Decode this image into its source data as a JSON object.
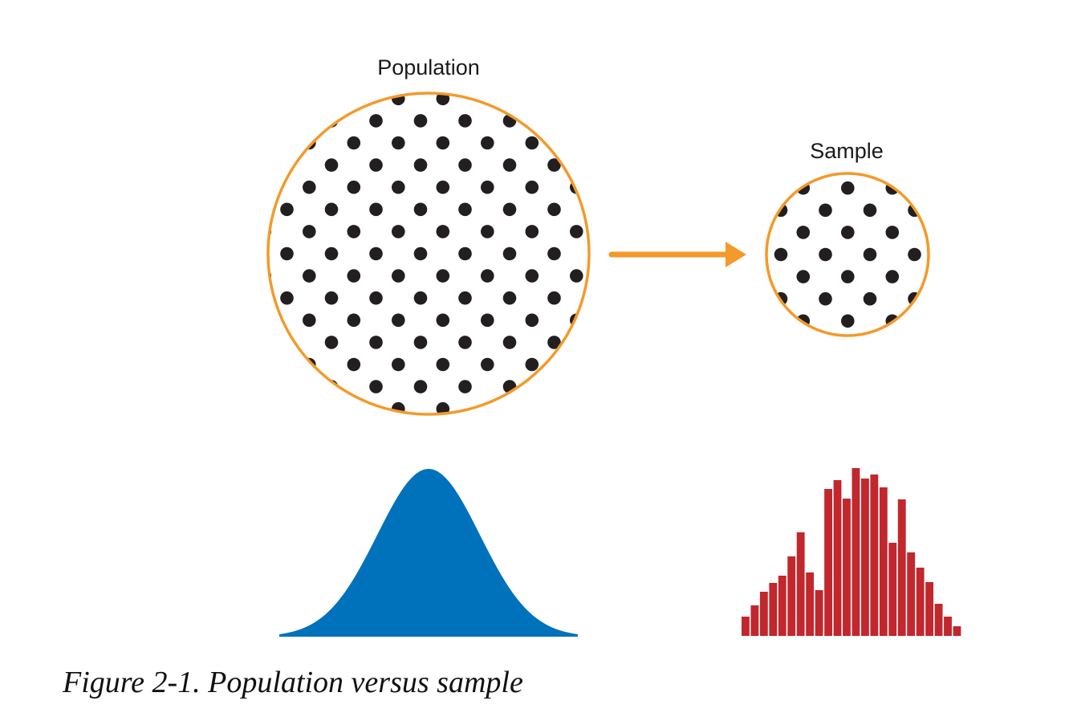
{
  "figure": {
    "population_label": "Population",
    "sample_label": "Sample",
    "caption": "Figure 2-1. Population versus sample"
  },
  "colors": {
    "circle_outline": "#f39a2a",
    "arrow": "#f39a2a",
    "dots": "#231f20",
    "population_curve": "#0072bc",
    "sample_histogram": "#c1272d",
    "background": "#ffffff"
  },
  "sample_histogram": {
    "bar_values": [
      24,
      38,
      55,
      66,
      75,
      99,
      129,
      79,
      57,
      183,
      194,
      171,
      209,
      196,
      201,
      185,
      116,
      170,
      104,
      85,
      67,
      40,
      24,
      12
    ]
  }
}
